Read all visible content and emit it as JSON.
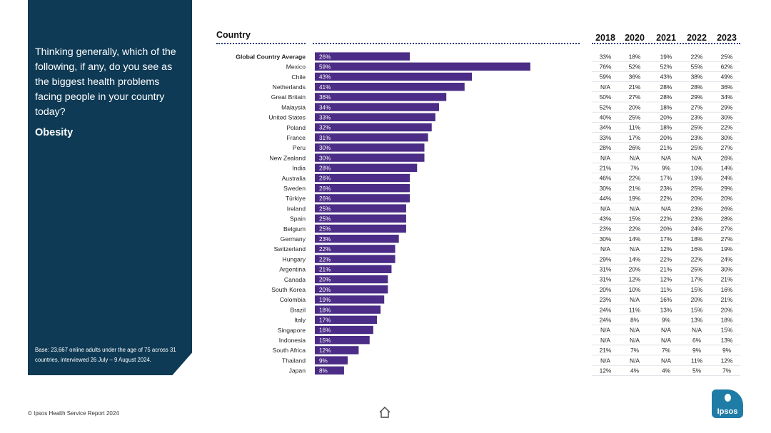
{
  "sidebar": {
    "question": "Thinking generally, which of the following, if any, do you see as the biggest health problems facing people in your country today?",
    "topic": "Obesity",
    "base_note": "Base: 23,667 online adults under the age of 75 across 31 countries, interviewed 26 July – 9 August 2024."
  },
  "footer": {
    "source": "© Ipsos Health Service Report 2024"
  },
  "logo": {
    "text": "Ipsos"
  },
  "colors": {
    "panel": "#0e3a55",
    "bar": "#4b2c86",
    "bar_label": "#ffffff",
    "accent": "#1e7ca6"
  },
  "chart_data": {
    "type": "bar",
    "orientation": "horizontal",
    "title": "Obesity",
    "category_header": "Country",
    "xlim": [
      0,
      60
    ],
    "grid": false,
    "value_suffix": "%",
    "categories": [
      "Global Country Average",
      "Mexico",
      "Chile",
      "Netherlands",
      "Great Britain",
      "Malaysia",
      "United States",
      "Poland",
      "France",
      "Peru",
      "New Zealand",
      "India",
      "Australia",
      "Sweden",
      "Türkiye",
      "Ireland",
      "Spain",
      "Belgium",
      "Germany",
      "Switzerland",
      "Hungary",
      "Argentina",
      "Canada",
      "South Korea",
      "Colombia",
      "Brazil",
      "Italy",
      "Singapore",
      "Indonesia",
      "South Africa",
      "Thailand",
      "Japan"
    ],
    "values": [
      26,
      59,
      43,
      41,
      36,
      34,
      33,
      32,
      31,
      30,
      30,
      28,
      26,
      26,
      26,
      25,
      25,
      25,
      23,
      22,
      22,
      21,
      20,
      20,
      19,
      18,
      17,
      16,
      15,
      12,
      9,
      8
    ],
    "year_headers": [
      "2018",
      "2020",
      "2021",
      "2022",
      "2023"
    ],
    "history": [
      [
        "33%",
        "18%",
        "19%",
        "22%",
        "25%"
      ],
      [
        "76%",
        "52%",
        "52%",
        "55%",
        "62%"
      ],
      [
        "59%",
        "36%",
        "43%",
        "38%",
        "49%"
      ],
      [
        "N/A",
        "21%",
        "28%",
        "28%",
        "36%"
      ],
      [
        "50%",
        "27%",
        "28%",
        "29%",
        "34%"
      ],
      [
        "52%",
        "20%",
        "18%",
        "27%",
        "29%"
      ],
      [
        "40%",
        "25%",
        "20%",
        "23%",
        "30%"
      ],
      [
        "34%",
        "11%",
        "18%",
        "25%",
        "22%"
      ],
      [
        "33%",
        "17%",
        "20%",
        "23%",
        "30%"
      ],
      [
        "28%",
        "26%",
        "21%",
        "25%",
        "27%"
      ],
      [
        "N/A",
        "N/A",
        "N/A",
        "N/A",
        "26%"
      ],
      [
        "21%",
        "7%",
        "9%",
        "10%",
        "14%"
      ],
      [
        "46%",
        "22%",
        "17%",
        "19%",
        "24%"
      ],
      [
        "30%",
        "21%",
        "23%",
        "25%",
        "29%"
      ],
      [
        "44%",
        "19%",
        "22%",
        "20%",
        "20%"
      ],
      [
        "N/A",
        "N/A",
        "N/A",
        "23%",
        "26%"
      ],
      [
        "43%",
        "15%",
        "22%",
        "23%",
        "28%"
      ],
      [
        "23%",
        "22%",
        "20%",
        "24%",
        "27%"
      ],
      [
        "30%",
        "14%",
        "17%",
        "18%",
        "27%"
      ],
      [
        "N/A",
        "N/A",
        "12%",
        "16%",
        "19%"
      ],
      [
        "29%",
        "14%",
        "22%",
        "22%",
        "24%"
      ],
      [
        "31%",
        "20%",
        "21%",
        "25%",
        "30%"
      ],
      [
        "31%",
        "12%",
        "12%",
        "17%",
        "21%"
      ],
      [
        "20%",
        "10%",
        "11%",
        "15%",
        "16%"
      ],
      [
        "23%",
        "N/A",
        "16%",
        "20%",
        "21%"
      ],
      [
        "24%",
        "11%",
        "13%",
        "15%",
        "20%"
      ],
      [
        "24%",
        "8%",
        "9%",
        "13%",
        "18%"
      ],
      [
        "N/A",
        "N/A",
        "N/A",
        "N/A",
        "15%"
      ],
      [
        "N/A",
        "N/A",
        "N/A",
        "6%",
        "13%"
      ],
      [
        "21%",
        "7%",
        "7%",
        "9%",
        "9%"
      ],
      [
        "N/A",
        "N/A",
        "N/A",
        "11%",
        "12%"
      ],
      [
        "12%",
        "4%",
        "4%",
        "5%",
        "7%"
      ]
    ]
  }
}
